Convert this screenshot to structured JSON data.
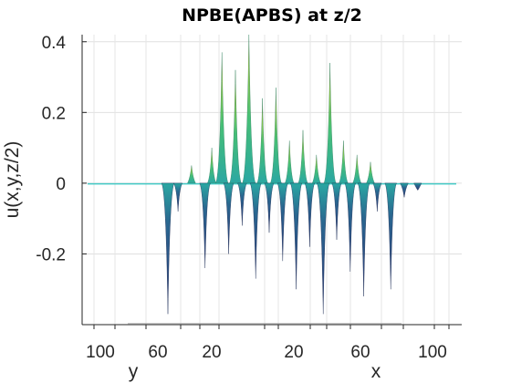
{
  "chart_data": {
    "type": "surface",
    "title": "NPBE(APBS) at z/2",
    "ylabel": "u(x,y,z/2)",
    "x_axis_label": "x",
    "y_axis_label": "y",
    "zlim": [
      -0.4,
      0.42
    ],
    "z_ticks": [
      "0.4",
      "0.2",
      "0",
      "-0.2"
    ],
    "z_tick_values": [
      0.4,
      0.2,
      0,
      -0.2
    ],
    "y_ticks": [
      "100",
      "60",
      "20"
    ],
    "x_ticks": [
      "20",
      "60",
      "100"
    ],
    "grid": true,
    "colormap": [
      "#1f2d6e",
      "#1f5f8b",
      "#20a39e",
      "#3dbd6e",
      "#a0c732",
      "#8a5a17"
    ],
    "peaks": [
      {
        "pos": 0.2,
        "value": -0.37
      },
      {
        "pos": 0.23,
        "value": -0.08
      },
      {
        "pos": 0.27,
        "value": 0.05
      },
      {
        "pos": 0.31,
        "value": -0.24
      },
      {
        "pos": 0.33,
        "value": 0.1
      },
      {
        "pos": 0.36,
        "value": 0.37
      },
      {
        "pos": 0.38,
        "value": -0.2
      },
      {
        "pos": 0.4,
        "value": 0.32
      },
      {
        "pos": 0.42,
        "value": -0.12
      },
      {
        "pos": 0.44,
        "value": 0.42
      },
      {
        "pos": 0.46,
        "value": -0.27
      },
      {
        "pos": 0.48,
        "value": 0.24
      },
      {
        "pos": 0.5,
        "value": -0.14
      },
      {
        "pos": 0.52,
        "value": 0.27
      },
      {
        "pos": 0.54,
        "value": -0.22
      },
      {
        "pos": 0.56,
        "value": 0.12
      },
      {
        "pos": 0.58,
        "value": -0.3
      },
      {
        "pos": 0.6,
        "value": 0.15
      },
      {
        "pos": 0.62,
        "value": -0.18
      },
      {
        "pos": 0.64,
        "value": 0.08
      },
      {
        "pos": 0.66,
        "value": -0.37
      },
      {
        "pos": 0.68,
        "value": 0.34
      },
      {
        "pos": 0.7,
        "value": -0.16
      },
      {
        "pos": 0.72,
        "value": 0.12
      },
      {
        "pos": 0.74,
        "value": -0.25
      },
      {
        "pos": 0.76,
        "value": 0.08
      },
      {
        "pos": 0.78,
        "value": -0.32
      },
      {
        "pos": 0.8,
        "value": 0.06
      },
      {
        "pos": 0.82,
        "value": -0.08
      },
      {
        "pos": 0.86,
        "value": -0.3
      },
      {
        "pos": 0.9,
        "value": -0.04
      },
      {
        "pos": 0.94,
        "value": -0.02
      }
    ]
  }
}
